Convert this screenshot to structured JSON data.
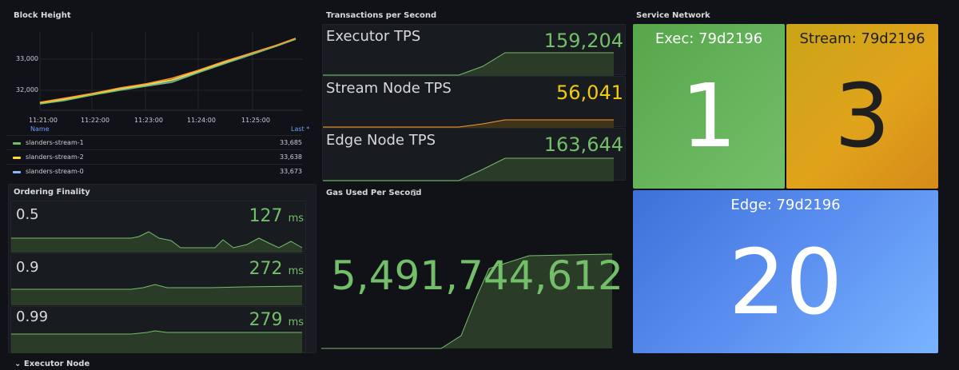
{
  "block_height": {
    "title": "Block Height",
    "y_ticks": [
      "33,000",
      "32,000"
    ],
    "x_ticks": [
      "11:21:00",
      "11:22:00",
      "11:23:00",
      "11:24:00",
      "11:25:00"
    ],
    "legend_header": {
      "name": "Name",
      "last": "Last *"
    },
    "series": [
      {
        "name": "slanders-stream-1",
        "last": "33,685",
        "color": "#73bf69"
      },
      {
        "name": "slanders-stream-2",
        "last": "33,638",
        "color": "#fade2a"
      },
      {
        "name": "slanders-stream-0",
        "last": "33,673",
        "color": "#8ab8ff"
      }
    ]
  },
  "tps": {
    "title": "Transactions per Second",
    "items": [
      {
        "label": "Executor TPS",
        "value": "159,204",
        "color": "#73bf69"
      },
      {
        "label": "Stream Node TPS",
        "value": "56,041",
        "color": "#f2cc0c"
      },
      {
        "label": "Edge Node TPS",
        "value": "163,644",
        "color": "#73bf69"
      }
    ]
  },
  "service_network": {
    "title": "Service Network",
    "tiles": [
      {
        "label": "Exec: 79d2196",
        "value": "1"
      },
      {
        "label": "Stream: 79d2196",
        "value": "3"
      },
      {
        "label": "Edge: 79d2196",
        "value": "20"
      }
    ]
  },
  "ordering_finality": {
    "title": "Ordering Finality",
    "items": [
      {
        "label": "0.5",
        "value": "127",
        "unit": "ms"
      },
      {
        "label": "0.9",
        "value": "272",
        "unit": "ms"
      },
      {
        "label": "0.99",
        "value": "279",
        "unit": "ms"
      }
    ]
  },
  "gas": {
    "title": "Gas Used Per Second",
    "info_icon": "i",
    "value": "5,491,744,612"
  },
  "row": {
    "chevron": "⌄",
    "label": "Executor Node"
  }
}
